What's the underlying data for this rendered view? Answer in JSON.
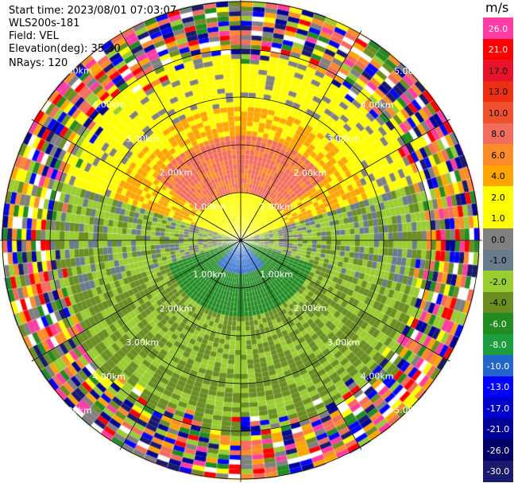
{
  "header": {
    "start_time": "Start time: 2023/08/01 07:03:07",
    "instrument": "WLS200s-181",
    "field": "Field: VEL",
    "elevation": "Elevation(deg): 35.30",
    "nrays": "NRays: 120"
  },
  "rings": {
    "labels": [
      "1.00km",
      "2.00km",
      "3.00km",
      "4.00km",
      "5.00km"
    ],
    "label_color": "#ffffff"
  },
  "colorbar": {
    "unit": "m/s",
    "ticks": [
      "26.0",
      "21.0",
      "17.0",
      "13.0",
      "10.0",
      "8.0",
      "6.0",
      "4.0",
      "2.0",
      "1.0",
      "0.0",
      "-1.0",
      "-2.0",
      "-4.0",
      "-6.0",
      "-8.0",
      "-10.0",
      "-13.0",
      "-17.0",
      "-21.0",
      "-26.0",
      "-30.0"
    ],
    "colors": [
      "#ff3ba4",
      "#ff0000",
      "#e8132a",
      "#ee2f14",
      "#f1502c",
      "#f36d5c",
      "#fc8b2a",
      "#ffa500",
      "#ffff00",
      "#ffff00",
      "#808080",
      "#6a7b8c",
      "#9acd32",
      "#6b8e23",
      "#228b22",
      "#1b9e3e",
      "#2266cc",
      "#0000ff",
      "#0000cc",
      "#000099",
      "#000066",
      "#191970"
    ]
  }
}
